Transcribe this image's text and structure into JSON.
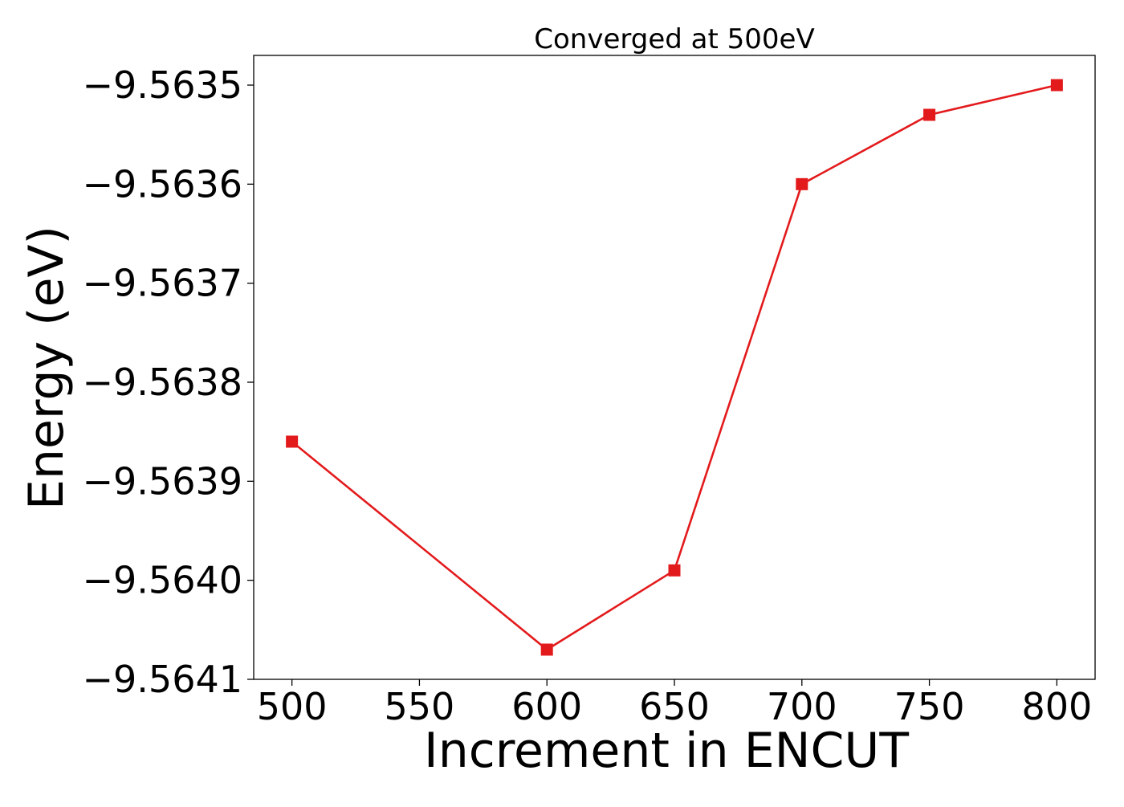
{
  "chart_data": {
    "type": "line",
    "title": "Converged at 500eV",
    "xlabel": "Increment in ENCUT",
    "ylabel": "Energy (eV)",
    "x": [
      500,
      600,
      650,
      700,
      750,
      800
    ],
    "y": [
      -9.56386,
      -9.56407,
      -9.56399,
      -9.5636,
      -9.56353,
      -9.5635
    ],
    "xlim": [
      485,
      815
    ],
    "ylim": [
      -9.5641,
      -9.56347
    ],
    "xticks": [
      500,
      550,
      600,
      650,
      700,
      750,
      800
    ],
    "xtick_labels": [
      "500",
      "550",
      "600",
      "650",
      "700",
      "750",
      "800"
    ],
    "yticks": [
      -9.5641,
      -9.564,
      -9.5639,
      -9.5638,
      -9.5637,
      -9.5636,
      -9.5635
    ],
    "ytick_labels": [
      "−9.5641",
      "−9.5640",
      "−9.5639",
      "−9.5638",
      "−9.5637",
      "−9.5636",
      "−9.5635"
    ],
    "marker": "square",
    "line_color": "#e31a1c",
    "grid": false,
    "legend": "none"
  }
}
